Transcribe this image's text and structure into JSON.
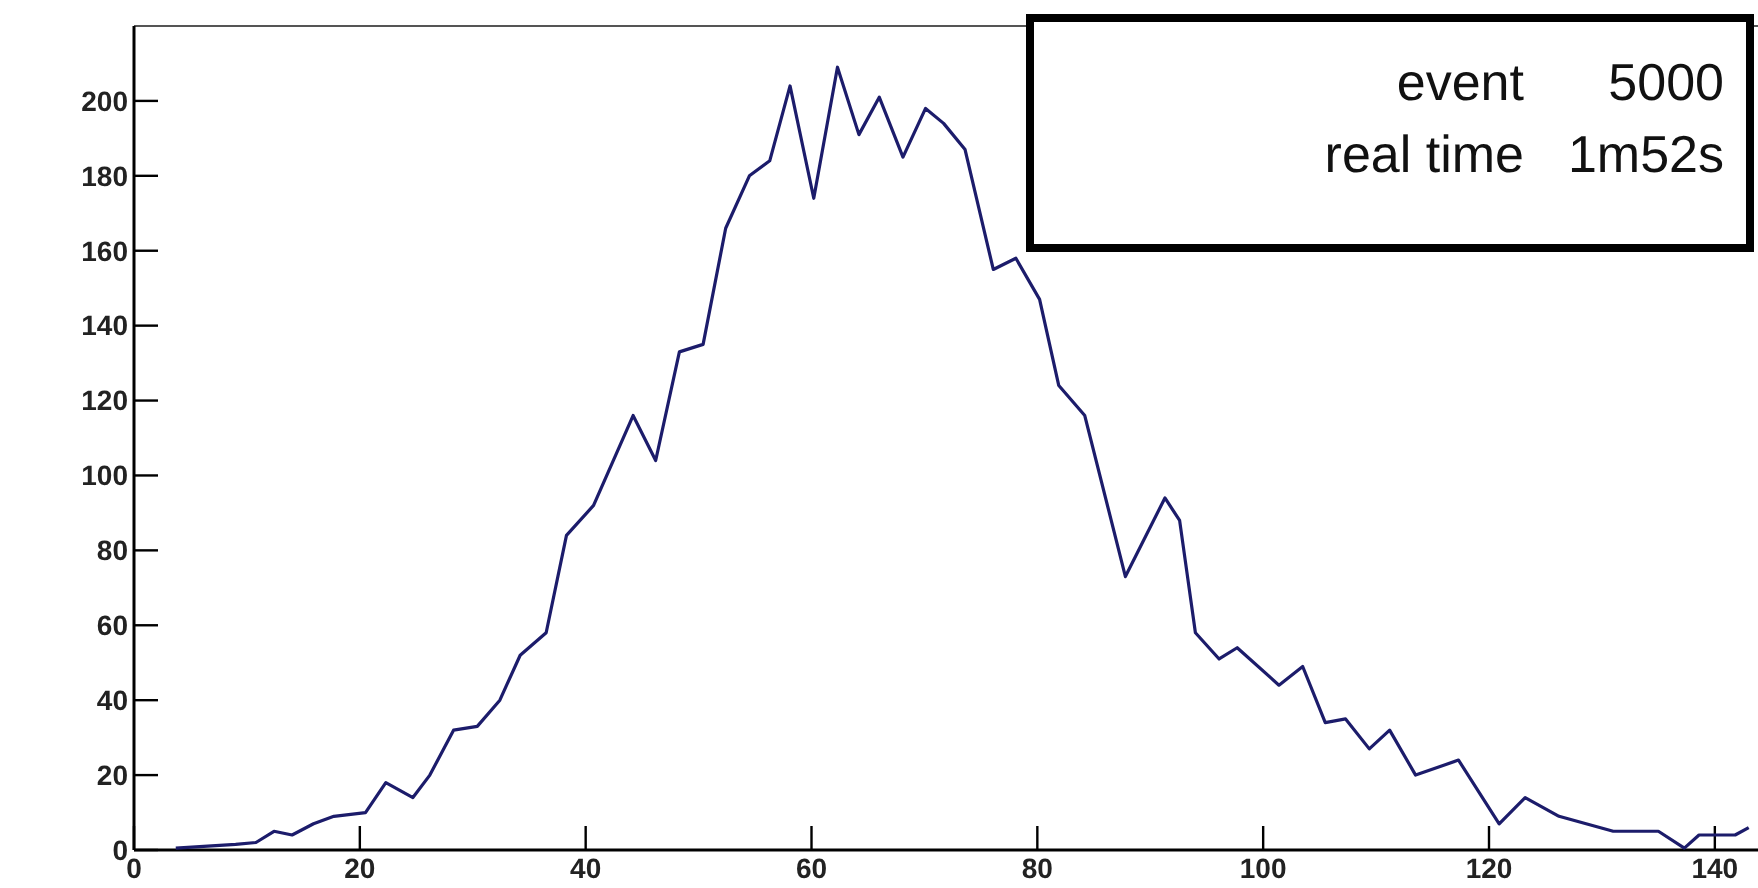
{
  "chart_data": {
    "type": "line",
    "xlim": [
      0,
      144
    ],
    "ylim": [
      0,
      220
    ],
    "xticks": [
      0,
      20,
      40,
      60,
      80,
      100,
      120,
      140
    ],
    "yticks": [
      0,
      20,
      40,
      60,
      80,
      100,
      120,
      140,
      160,
      180,
      200
    ],
    "annotations": [
      "event 5000",
      "real time 1m52s"
    ],
    "series": [
      {
        "color": "#1c1c6b",
        "x": [
          3.7,
          9,
          10.8,
          12.4,
          14,
          15.9,
          17.7,
          20.5,
          22.3,
          24.7,
          26.2,
          28.3,
          30.4,
          32.4,
          34.2,
          36.5,
          38.3,
          40.7,
          44.2,
          46.2,
          48.3,
          50.4,
          52.4,
          54.5,
          56.3,
          58.1,
          60.2,
          62.3,
          64.2,
          66,
          68.1,
          70.1,
          71.7,
          73.6,
          76.1,
          78.1,
          80.2,
          81.9,
          84.2,
          87.8,
          91.3,
          92.6,
          94,
          96.1,
          97.7,
          101.4,
          103.5,
          105.5,
          107.3,
          109.4,
          111.2,
          113.5,
          117.3,
          120.9,
          123.2,
          126.2,
          131,
          135,
          137.3,
          138.6,
          141.8,
          143
        ],
        "values": [
          0.5,
          1.5,
          2,
          5,
          4,
          7,
          9,
          10,
          18,
          14,
          20,
          32,
          33,
          40,
          52,
          58,
          84,
          92,
          116,
          104,
          133,
          135,
          166,
          180,
          184,
          204,
          174,
          209,
          191,
          201,
          185,
          198,
          194,
          187,
          155,
          158,
          147,
          124,
          116,
          73,
          94,
          88,
          58,
          51,
          54,
          44,
          49,
          34,
          35,
          27,
          32,
          20,
          24,
          7,
          14,
          9,
          5,
          5,
          0.5,
          4,
          4,
          6
        ]
      }
    ],
    "grid": false
  }
}
